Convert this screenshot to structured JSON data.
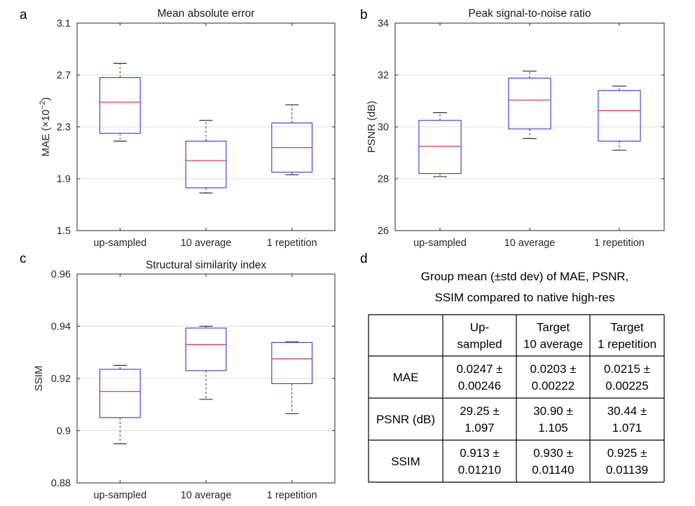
{
  "panels": {
    "a": "a",
    "b": "b",
    "c": "c",
    "d": "d"
  },
  "chart_data": [
    {
      "type": "boxplot",
      "title": "Mean absolute error",
      "xlabel": "",
      "ylabel": "MAE (×10",
      "ylabel_sup": "−2",
      "ylabel_end": ")",
      "ylim": [
        1.5,
        3.1
      ],
      "yticks": [
        1.5,
        1.9,
        2.3,
        2.7,
        3.1
      ],
      "ytick_labels": [
        "1.5",
        "1.9",
        "2.3",
        "2.7",
        "3.1"
      ],
      "grid": "horizontal",
      "categories": [
        "up-sampled",
        "10 average",
        "1 repetition"
      ],
      "boxes": [
        {
          "min": 2.19,
          "q1": 2.25,
          "median": 2.49,
          "q3": 2.68,
          "max": 2.79
        },
        {
          "min": 1.79,
          "q1": 1.83,
          "median": 2.04,
          "q3": 2.19,
          "max": 2.35
        },
        {
          "min": 1.93,
          "q1": 1.95,
          "median": 2.14,
          "q3": 2.33,
          "max": 2.47
        }
      ],
      "colors": {
        "box": "#3333e0",
        "median": "#e03a4a",
        "whisker": "#333333",
        "grid": "#dcdcdc",
        "axis": "#262626"
      }
    },
    {
      "type": "boxplot",
      "title": "Peak signal-to-noise ratio",
      "xlabel": "",
      "ylabel": "PSNR (dB)",
      "ylim": [
        26,
        34
      ],
      "yticks": [
        26,
        28,
        30,
        32,
        34
      ],
      "ytick_labels": [
        "26",
        "28",
        "30",
        "32",
        "34"
      ],
      "grid": "horizontal",
      "categories": [
        "up-sampled",
        "10 average",
        "1 repetition"
      ],
      "boxes": [
        {
          "min": 28.08,
          "q1": 28.2,
          "median": 29.25,
          "q3": 30.25,
          "max": 30.55
        },
        {
          "min": 29.55,
          "q1": 29.92,
          "median": 31.03,
          "q3": 31.88,
          "max": 32.15
        },
        {
          "min": 29.1,
          "q1": 29.45,
          "median": 30.63,
          "q3": 31.4,
          "max": 31.57
        }
      ],
      "colors": {
        "box": "#3333e0",
        "median": "#e03a4a",
        "whisker": "#333333",
        "grid": "#dcdcdc",
        "axis": "#262626"
      }
    },
    {
      "type": "boxplot",
      "title": "Structural similarity index",
      "xlabel": "",
      "ylabel": "SSIM",
      "ylim": [
        0.88,
        0.96
      ],
      "yticks": [
        0.88,
        0.9,
        0.92,
        0.94,
        0.96
      ],
      "ytick_labels": [
        "0.88",
        "0.9",
        "0.92",
        "0.94",
        "0.96"
      ],
      "grid": "horizontal",
      "categories": [
        "up-sampled",
        "10 average",
        "1 repetition"
      ],
      "boxes": [
        {
          "min": 0.895,
          "q1": 0.905,
          "median": 0.915,
          "q3": 0.9235,
          "max": 0.925
        },
        {
          "min": 0.912,
          "q1": 0.923,
          "median": 0.933,
          "q3": 0.9393,
          "max": 0.94
        },
        {
          "min": 0.9065,
          "q1": 0.918,
          "median": 0.9275,
          "q3": 0.9338,
          "max": 0.934
        }
      ],
      "colors": {
        "box": "#3333e0",
        "median": "#e03a4a",
        "whisker": "#333333",
        "grid": "#dcdcdc",
        "axis": "#262626"
      }
    }
  ],
  "table": {
    "caption_lines": [
      "Group mean (±std dev) of MAE, PSNR,",
      "SSIM compared to native high-res"
    ],
    "header": [
      [
        ""
      ],
      [
        "Up-",
        "sampled"
      ],
      [
        "Target",
        "10 average"
      ],
      [
        "Target",
        "1 repetition"
      ]
    ],
    "rows": [
      {
        "label": "MAE",
        "cells": [
          [
            "0.0247 ±",
            "0.00246"
          ],
          [
            "0.0203 ±",
            "0.00222"
          ],
          [
            "0.0215 ±",
            "0.00225"
          ]
        ]
      },
      {
        "label": "PSNR (dB)",
        "cells": [
          [
            "29.25 ±",
            "1.097"
          ],
          [
            "30.90 ±",
            "1.105"
          ],
          [
            "30.44 ±",
            "1.071"
          ]
        ]
      },
      {
        "label": "SSIM",
        "cells": [
          [
            "0.913 ±",
            "0.01210"
          ],
          [
            "0.930 ±",
            "0.01140"
          ],
          [
            "0.925 ±",
            "0.01139"
          ]
        ]
      }
    ]
  }
}
